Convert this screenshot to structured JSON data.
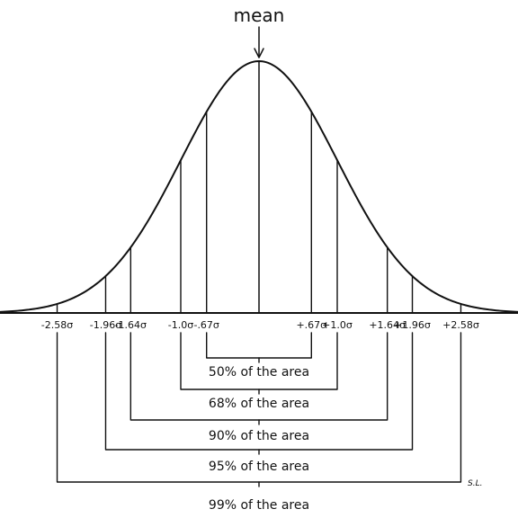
{
  "diagram": {
    "mean_label": "mean",
    "ticks": [
      {
        "label": "-2.58σ",
        "z": -2.58
      },
      {
        "label": "-1.96σ",
        "z": -1.96
      },
      {
        "label": "-1.64σ",
        "z": -1.64
      },
      {
        "label": "-1.0σ",
        "z": -1.0
      },
      {
        "label": "-.67σ",
        "z": -0.67
      },
      {
        "label": "+.67σ",
        "z": 0.67
      },
      {
        "label": "+1.0σ",
        "z": 1.0
      },
      {
        "label": "+1.64σ",
        "z": 1.64
      },
      {
        "label": "+1.96σ",
        "z": 1.96
      },
      {
        "label": "+2.58σ",
        "z": 2.58
      }
    ],
    "intervals": [
      {
        "z": 0.67,
        "label": "50% of the area"
      },
      {
        "z": 1.0,
        "label": "68% of the area"
      },
      {
        "z": 1.64,
        "label": "90% of the area"
      },
      {
        "z": 1.96,
        "label": "95% of the area"
      },
      {
        "z": 2.58,
        "label": "99% of the area"
      }
    ],
    "signature": "S.L."
  }
}
